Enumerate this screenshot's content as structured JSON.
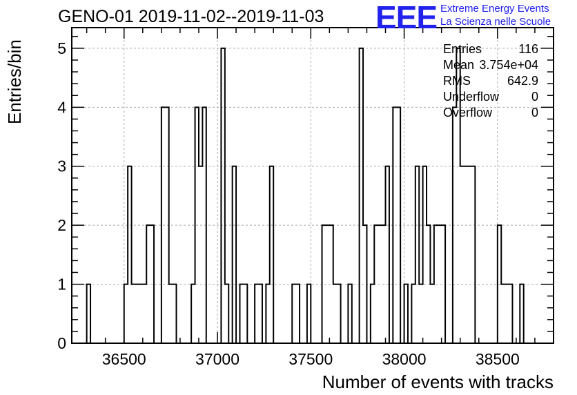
{
  "title": "GENO-01 2019-11-02--2019-11-03",
  "logo": {
    "mark": "EEE",
    "line1": "Extreme Energy Events",
    "line2": "La Scienza nelle Scuole"
  },
  "stats": [
    {
      "label": "Entries",
      "value": "116"
    },
    {
      "label": "Mean",
      "value": "3.754e+04"
    },
    {
      "label": "RMS",
      "value": "642.9"
    },
    {
      "label": "Underflow",
      "value": "0"
    },
    {
      "label": "Overflow",
      "value": "0"
    }
  ],
  "chart_data": {
    "type": "bar",
    "style": "step-histogram",
    "xlabel": "Number of events with tracks",
    "ylabel": "Entries/bin",
    "xlim": [
      36220,
      38800
    ],
    "ylim": [
      0,
      5.35
    ],
    "xticks": [
      36500,
      37000,
      37500,
      38000,
      38500
    ],
    "yticks": [
      0,
      1,
      2,
      3,
      4,
      5
    ],
    "grid": true,
    "bin_width": 20,
    "bins": [
      [
        36300,
        1
      ],
      [
        36500,
        1
      ],
      [
        36520,
        3
      ],
      [
        36540,
        1
      ],
      [
        36560,
        1
      ],
      [
        36580,
        1
      ],
      [
        36600,
        1
      ],
      [
        36620,
        2
      ],
      [
        36640,
        2
      ],
      [
        36700,
        4
      ],
      [
        36720,
        4
      ],
      [
        36740,
        1
      ],
      [
        36760,
        1
      ],
      [
        36860,
        1
      ],
      [
        36880,
        4
      ],
      [
        36900,
        3
      ],
      [
        36920,
        4
      ],
      [
        37020,
        5
      ],
      [
        37040,
        1
      ],
      [
        37080,
        3
      ],
      [
        37120,
        1
      ],
      [
        37140,
        1
      ],
      [
        37200,
        1
      ],
      [
        37220,
        1
      ],
      [
        37260,
        1
      ],
      [
        37280,
        3
      ],
      [
        37400,
        1
      ],
      [
        37420,
        1
      ],
      [
        37480,
        1
      ],
      [
        37560,
        2
      ],
      [
        37580,
        2
      ],
      [
        37600,
        2
      ],
      [
        37620,
        1
      ],
      [
        37640,
        1
      ],
      [
        37700,
        1
      ],
      [
        37760,
        5
      ],
      [
        37780,
        2
      ],
      [
        37820,
        1
      ],
      [
        37840,
        2
      ],
      [
        37860,
        2
      ],
      [
        37880,
        2
      ],
      [
        37900,
        3
      ],
      [
        37940,
        4
      ],
      [
        37960,
        4
      ],
      [
        38000,
        1
      ],
      [
        38040,
        1
      ],
      [
        38060,
        3
      ],
      [
        38080,
        1
      ],
      [
        38100,
        3
      ],
      [
        38120,
        2
      ],
      [
        38140,
        1
      ],
      [
        38160,
        2
      ],
      [
        38180,
        2
      ],
      [
        38200,
        2
      ],
      [
        38260,
        4
      ],
      [
        38280,
        5
      ],
      [
        38300,
        3
      ],
      [
        38320,
        3
      ],
      [
        38340,
        3
      ],
      [
        38360,
        3
      ],
      [
        38500,
        2
      ],
      [
        38520,
        1
      ],
      [
        38540,
        1
      ],
      [
        38560,
        1
      ],
      [
        38620,
        1
      ]
    ]
  }
}
